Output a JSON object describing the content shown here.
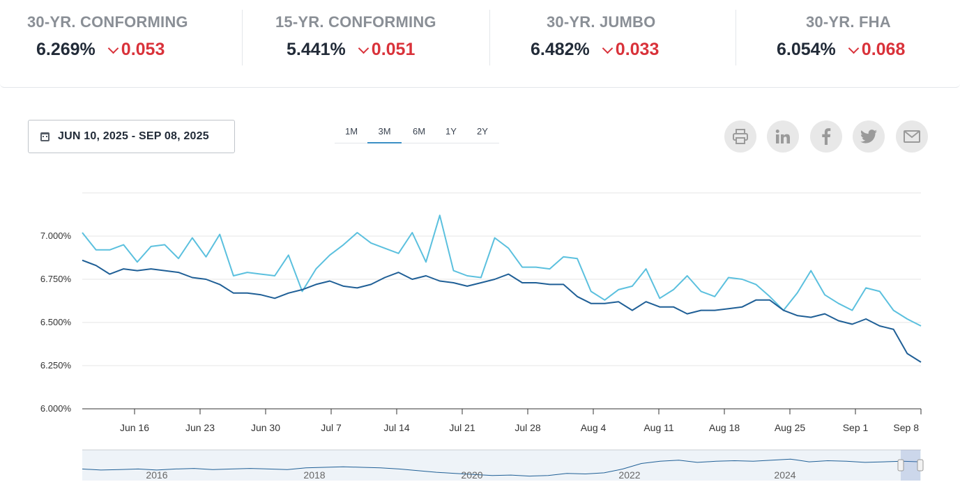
{
  "rates": [
    {
      "title": "30-YR. CONFORMING",
      "value": "6.269%",
      "change": "0.053"
    },
    {
      "title": "15-YR. CONFORMING",
      "value": "5.441%",
      "change": "0.051"
    },
    {
      "title": "30-YR. JUMBO",
      "value": "6.482%",
      "change": "0.033"
    },
    {
      "title": "30-YR. FHA",
      "value": "6.054%",
      "change": "0.068"
    }
  ],
  "date_range": "JUN 10, 2025 - SEP 08, 2025",
  "range_tabs": [
    "1M",
    "3M",
    "6M",
    "1Y",
    "2Y"
  ],
  "active_range": "3M",
  "share_icons": [
    "print-icon",
    "linkedin-icon",
    "facebook-icon",
    "twitter-icon",
    "email-icon"
  ],
  "colors": {
    "down": "#d9323a",
    "light_series": "#5bc0de",
    "dark_series": "#1f5f96",
    "navigator_bg": "#eef3f8"
  },
  "chart_data": {
    "type": "line",
    "ylim": [
      6.0,
      7.25
    ],
    "yticks": [
      6.0,
      6.25,
      6.5,
      6.75,
      7.0
    ],
    "ytick_labels": [
      "6.000%",
      "6.250%",
      "6.500%",
      "6.750%",
      "7.000%"
    ],
    "xtick_labels": [
      "Jun 16",
      "Jun 23",
      "Jun 30",
      "Jul 7",
      "Jul 14",
      "Jul 21",
      "Jul 28",
      "Aug 4",
      "Aug 11",
      "Aug 18",
      "Aug 25",
      "Sep 1",
      "Sep 8"
    ],
    "grid": true,
    "series": [
      {
        "color": "#5bc0de",
        "values": [
          7.02,
          6.92,
          6.92,
          6.95,
          6.85,
          6.94,
          6.95,
          6.87,
          6.99,
          6.88,
          7.01,
          6.77,
          6.79,
          6.78,
          6.77,
          6.89,
          6.68,
          6.81,
          6.89,
          6.95,
          7.02,
          6.96,
          6.93,
          6.9,
          7.02,
          6.85,
          7.12,
          6.8,
          6.77,
          6.76,
          6.99,
          6.93,
          6.82,
          6.82,
          6.81,
          6.88,
          6.87,
          6.68,
          6.63,
          6.69,
          6.71,
          6.81,
          6.64,
          6.69,
          6.77,
          6.68,
          6.65,
          6.76,
          6.75,
          6.72,
          6.65,
          6.57,
          6.67,
          6.8,
          6.66,
          6.61,
          6.57,
          6.7,
          6.68,
          6.57,
          6.52,
          6.48
        ]
      },
      {
        "color": "#1f5f96",
        "values": [
          6.86,
          6.83,
          6.78,
          6.81,
          6.8,
          6.81,
          6.8,
          6.79,
          6.76,
          6.75,
          6.72,
          6.67,
          6.67,
          6.66,
          6.64,
          6.67,
          6.69,
          6.72,
          6.74,
          6.71,
          6.7,
          6.72,
          6.76,
          6.79,
          6.75,
          6.77,
          6.74,
          6.73,
          6.71,
          6.73,
          6.75,
          6.78,
          6.73,
          6.73,
          6.72,
          6.72,
          6.65,
          6.61,
          6.61,
          6.62,
          6.57,
          6.62,
          6.59,
          6.59,
          6.55,
          6.57,
          6.57,
          6.58,
          6.59,
          6.63,
          6.63,
          6.57,
          6.54,
          6.53,
          6.55,
          6.51,
          6.49,
          6.52,
          6.48,
          6.46,
          6.32,
          6.27
        ]
      }
    ],
    "navigator_labels": [
      "2016",
      "2018",
      "2020",
      "2022",
      "2024"
    ],
    "navigator_values": [
      6.3,
      6.2,
      6.25,
      6.3,
      6.2,
      6.3,
      6.35,
      6.25,
      6.3,
      6.35,
      6.3,
      6.25,
      6.4,
      6.45,
      6.5,
      6.45,
      6.4,
      6.3,
      6.15,
      6.0,
      5.9,
      5.8,
      5.7,
      5.75,
      5.65,
      5.7,
      5.9,
      5.85,
      5.95,
      6.3,
      6.8,
      7.0,
      7.1,
      6.9,
      7.0,
      7.05,
      7.0,
      7.1,
      7.2,
      6.95,
      7.05,
      7.0,
      6.9,
      6.95,
      7.0,
      6.95
    ]
  }
}
